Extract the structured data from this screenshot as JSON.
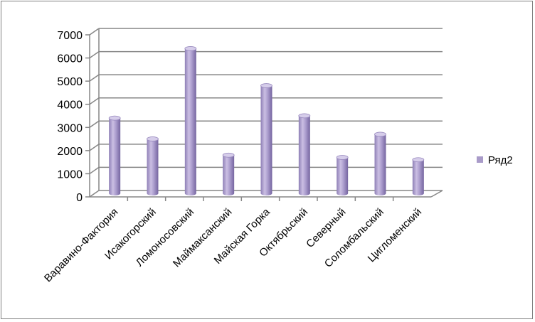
{
  "chart_data": {
    "type": "bar",
    "categories": [
      "Варавино-Фактория",
      "Исакогорский",
      "Ломоносовский",
      "Маймаксанский",
      "Майская Горка",
      "Октябрьский",
      "Северный",
      "Соломбальский",
      "Цигломенский"
    ],
    "series": [
      {
        "name": "Ряд2",
        "values": [
          3250,
          2350,
          6250,
          1650,
          4650,
          3350,
          1550,
          2550,
          1450
        ]
      }
    ],
    "y_ticks": [
      "0",
      "1000",
      "2000",
      "3000",
      "4000",
      "5000",
      "6000",
      "7000"
    ],
    "ylim": [
      0,
      7000
    ],
    "grid": true,
    "legend_position": "right",
    "style": "3d-cylinder",
    "colors": {
      "bar_fill": "#a99bc9",
      "bar_dark": "#7d6ca8",
      "bar_light": "#d6cdea",
      "grid": "#868686",
      "axis": "#868686"
    }
  }
}
